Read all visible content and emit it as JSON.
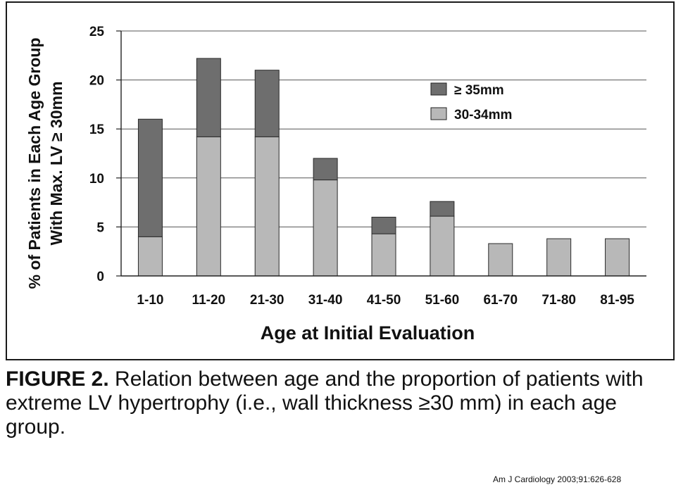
{
  "chart_data": {
    "type": "bar",
    "stacked": true,
    "categories": [
      "1-10",
      "11-20",
      "21-30",
      "31-40",
      "41-50",
      "51-60",
      "61-70",
      "71-80",
      "81-95"
    ],
    "series": [
      {
        "name": "30-34mm",
        "color": "#b8b8b8",
        "values": [
          4,
          14.2,
          14.2,
          9.8,
          4.3,
          6.1,
          3.3,
          3.8,
          3.8
        ]
      },
      {
        "name": "≥ 35mm",
        "color": "#6e6e6e",
        "values": [
          12,
          8,
          6.8,
          2.2,
          1.7,
          1.5,
          0,
          0,
          0
        ]
      }
    ],
    "xlabel": "Age at Initial Evaluation",
    "ylabel_line1": "% of Patients in Each Age Group",
    "ylabel_line2": "With Max. LV ≥ 30mm",
    "ylim": [
      0,
      25
    ],
    "yticks": [
      0,
      5,
      10,
      15,
      20,
      25
    ],
    "grid": true,
    "legend_position": "top-right"
  },
  "caption": {
    "label": "FIGURE 2.",
    "text": "Relation between age and the proportion of patients with extreme LV hypertrophy (i.e., wall thickness ≥30 mm) in each age group."
  },
  "citation": "Am J Cardiology 2003;91:626-628"
}
